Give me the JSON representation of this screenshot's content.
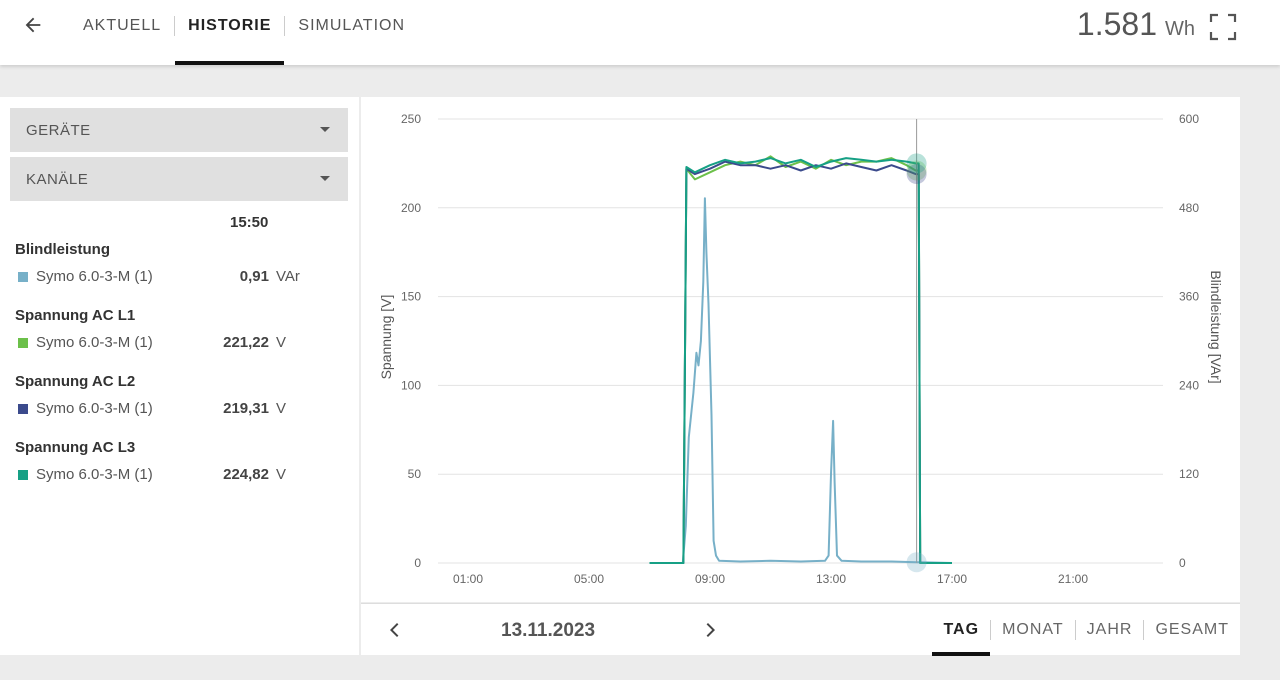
{
  "header": {
    "back_icon": "arrow-left-icon",
    "tabs": [
      {
        "label": "AKTUELL",
        "active": false
      },
      {
        "label": "HISTORIE",
        "active": true
      },
      {
        "label": "SIMULATION",
        "active": false
      }
    ],
    "energy_value": "1.581",
    "energy_unit": "Wh",
    "fullscreen_icon": "fullscreen-icon"
  },
  "filters": {
    "devices_label": "GERÄTE",
    "channels_label": "KANÄLE"
  },
  "legend": {
    "time": "15:50",
    "groups": [
      {
        "title": "Blindleistung",
        "device": "Symo 6.0-3-M (1)",
        "value": "0,91",
        "unit": "VAr",
        "color": "#77b0c8"
      },
      {
        "title": "Spannung AC L1",
        "device": "Symo 6.0-3-M (1)",
        "value": "221,22",
        "unit": "V",
        "color": "#6cc04a"
      },
      {
        "title": "Spannung AC L2",
        "device": "Symo 6.0-3-M (1)",
        "value": "219,31",
        "unit": "V",
        "color": "#3b4a8c"
      },
      {
        "title": "Spannung AC L3",
        "device": "Symo 6.0-3-M (1)",
        "value": "224,82",
        "unit": "V",
        "color": "#16a085"
      }
    ]
  },
  "chart_data": {
    "type": "line",
    "x_ticks": [
      "01:00",
      "05:00",
      "09:00",
      "13:00",
      "17:00",
      "21:00"
    ],
    "ylabel": "Spannung [V]",
    "y2label": "Blindleistung [VAr]",
    "ylim": [
      0,
      250
    ],
    "y_ticks": [
      0,
      50,
      100,
      150,
      200,
      250
    ],
    "y2lim": [
      0,
      600
    ],
    "y2_ticks": [
      0,
      120,
      240,
      360,
      480,
      600
    ],
    "cursor_time": 15.83,
    "series": [
      {
        "name": "Spannung AC L1",
        "axis": "left",
        "color": "#6cc04a",
        "points": [
          [
            7.0,
            0
          ],
          [
            8.0,
            0
          ],
          [
            8.12,
            0
          ],
          [
            8.22,
            222
          ],
          [
            8.5,
            216
          ],
          [
            9.0,
            220
          ],
          [
            9.5,
            224
          ],
          [
            10.0,
            226
          ],
          [
            10.5,
            224
          ],
          [
            11.0,
            229
          ],
          [
            11.5,
            223
          ],
          [
            12.0,
            226
          ],
          [
            12.5,
            222
          ],
          [
            13.0,
            227
          ],
          [
            13.5,
            224
          ],
          [
            14.0,
            226
          ],
          [
            14.5,
            226
          ],
          [
            15.0,
            228
          ],
          [
            15.5,
            224
          ],
          [
            15.8,
            221
          ],
          [
            15.9,
            221
          ],
          [
            15.95,
            0
          ],
          [
            16.5,
            0
          ],
          [
            17.0,
            0
          ]
        ]
      },
      {
        "name": "Spannung AC L2",
        "axis": "left",
        "color": "#3b4a8c",
        "points": [
          [
            7.0,
            0
          ],
          [
            8.0,
            0
          ],
          [
            8.12,
            0
          ],
          [
            8.22,
            222
          ],
          [
            8.5,
            219
          ],
          [
            9.0,
            222
          ],
          [
            9.5,
            226
          ],
          [
            10.0,
            224
          ],
          [
            10.5,
            224
          ],
          [
            11.0,
            222
          ],
          [
            11.5,
            224
          ],
          [
            12.0,
            221
          ],
          [
            12.5,
            224
          ],
          [
            13.0,
            222
          ],
          [
            13.5,
            225
          ],
          [
            14.0,
            223
          ],
          [
            14.5,
            221
          ],
          [
            15.0,
            224
          ],
          [
            15.5,
            221
          ],
          [
            15.8,
            219
          ],
          [
            15.9,
            219
          ],
          [
            15.95,
            0
          ],
          [
            16.5,
            0
          ],
          [
            17.0,
            0
          ]
        ]
      },
      {
        "name": "Spannung AC L3",
        "axis": "left",
        "color": "#16a085",
        "points": [
          [
            7.0,
            0
          ],
          [
            8.0,
            0
          ],
          [
            8.12,
            0
          ],
          [
            8.22,
            223
          ],
          [
            8.5,
            220
          ],
          [
            9.0,
            224
          ],
          [
            9.5,
            227
          ],
          [
            10.0,
            225
          ],
          [
            10.5,
            226
          ],
          [
            11.0,
            228
          ],
          [
            11.5,
            225
          ],
          [
            12.0,
            227
          ],
          [
            12.5,
            223
          ],
          [
            13.0,
            226
          ],
          [
            13.5,
            228
          ],
          [
            14.0,
            227
          ],
          [
            14.5,
            226
          ],
          [
            15.0,
            227
          ],
          [
            15.5,
            226
          ],
          [
            15.8,
            225
          ],
          [
            15.9,
            225
          ],
          [
            15.95,
            0
          ],
          [
            16.5,
            0
          ],
          [
            17.0,
            0
          ]
        ]
      },
      {
        "name": "Blindleistung",
        "axis": "right",
        "color": "#77b0c8",
        "points": [
          [
            7.0,
            0
          ],
          [
            8.1,
            0
          ],
          [
            8.2,
            50
          ],
          [
            8.3,
            170
          ],
          [
            8.45,
            230
          ],
          [
            8.55,
            284
          ],
          [
            8.62,
            267
          ],
          [
            8.7,
            300
          ],
          [
            8.78,
            380
          ],
          [
            8.83,
            493
          ],
          [
            8.88,
            420
          ],
          [
            8.95,
            350
          ],
          [
            9.05,
            200
          ],
          [
            9.12,
            30
          ],
          [
            9.2,
            10
          ],
          [
            9.3,
            3
          ],
          [
            10.0,
            2
          ],
          [
            11.0,
            3
          ],
          [
            12.0,
            2
          ],
          [
            12.8,
            3
          ],
          [
            12.92,
            10
          ],
          [
            13.0,
            120
          ],
          [
            13.07,
            192
          ],
          [
            13.12,
            110
          ],
          [
            13.2,
            10
          ],
          [
            13.35,
            3
          ],
          [
            14.0,
            2
          ],
          [
            15.0,
            2
          ],
          [
            15.83,
            1
          ],
          [
            16.0,
            1
          ],
          [
            17.0,
            0
          ]
        ]
      }
    ]
  },
  "bottom": {
    "prev_icon": "chevron-left-icon",
    "next_icon": "chevron-right-icon",
    "date": "13.11.2023",
    "range_tabs": [
      {
        "label": "TAG",
        "active": true
      },
      {
        "label": "MONAT",
        "active": false
      },
      {
        "label": "JAHR",
        "active": false
      },
      {
        "label": "GESAMT",
        "active": false
      }
    ]
  }
}
